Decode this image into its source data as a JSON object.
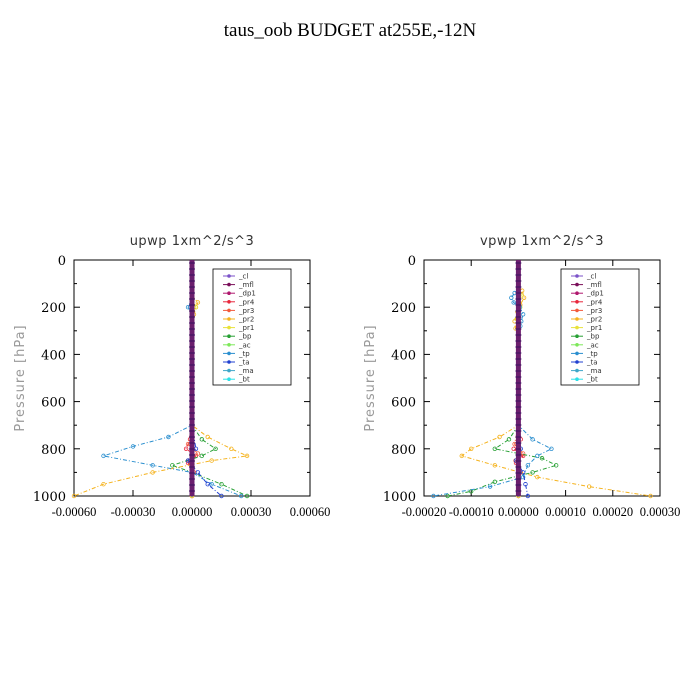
{
  "title": "taus_oob  BUDGET at255E,-12N",
  "chart_data": [
    {
      "type": "line",
      "title": "upwp   1xm^2/s^3",
      "ylabel": "Pressure [hPa]",
      "xlabel": "",
      "xlim": [
        -0.0006,
        0.0006
      ],
      "ylim": [
        1000,
        0
      ],
      "xticks": [
        "-0.00060",
        "-0.00030",
        "0.00000",
        "0.00030",
        "0.00060"
      ],
      "yticks": [
        "0",
        "200",
        "400",
        "600",
        "800",
        "1000"
      ],
      "legend_position": "top-right",
      "series": [
        {
          "name": "_cl",
          "color": "#7b52c8",
          "y": [
            0,
            1000
          ],
          "values": [
            0,
            0
          ]
        },
        {
          "name": "_mfl",
          "color": "#7a0f5a",
          "y": [
            0,
            1000
          ],
          "values": [
            0,
            0
          ]
        },
        {
          "name": "_dp1",
          "color": "#b0186e",
          "y": [
            0,
            1000
          ],
          "values": [
            0,
            0
          ]
        },
        {
          "name": "_pr4",
          "color": "#e8263c",
          "y": [
            700,
            760,
            800,
            830,
            860,
            900,
            950,
            1000
          ],
          "values": [
            0,
            -1e-05,
            -3e-05,
            2e-05,
            -2e-05,
            1e-05,
            0,
            0
          ]
        },
        {
          "name": "_pr3",
          "color": "#f25a3c",
          "y": [
            700,
            780,
            820,
            850,
            900,
            1000
          ],
          "values": [
            0,
            -2e-05,
            3e-05,
            -2e-05,
            1e-05,
            0
          ]
        },
        {
          "name": "_pr2",
          "color": "#f5b31e",
          "y": [
            150,
            180,
            200,
            230,
            700,
            750,
            800,
            830,
            850,
            900,
            950,
            1000
          ],
          "values": [
            0,
            3e-05,
            2e-05,
            1e-05,
            0,
            8e-05,
            0.0002,
            0.00028,
            0.0001,
            -0.0002,
            -0.00045,
            -0.0006
          ]
        },
        {
          "name": "_pr1",
          "color": "#e8e23a",
          "y": [
            150,
            200,
            230,
            700,
            1000
          ],
          "values": [
            0,
            2e-05,
            0,
            0,
            0
          ]
        },
        {
          "name": "_bp",
          "color": "#27a034",
          "y": [
            700,
            760,
            800,
            830,
            870,
            900,
            950,
            1000
          ],
          "values": [
            0,
            5e-05,
            0.00012,
            5e-05,
            -0.0001,
            0,
            0.00015,
            0.00028
          ]
        },
        {
          "name": "_ac",
          "color": "#7de85a",
          "y": [
            0,
            1000
          ],
          "values": [
            0,
            0
          ]
        },
        {
          "name": "_tp",
          "color": "#2b8fcf",
          "y": [
            160,
            200,
            230,
            700,
            750,
            790,
            830,
            870,
            900,
            950,
            1000
          ],
          "values": [
            0,
            -2e-05,
            0,
            0,
            -0.00012,
            -0.0003,
            -0.00045,
            -0.0002,
            0,
            0.0001,
            0.00025
          ]
        },
        {
          "name": "_ta",
          "color": "#2040d0",
          "y": [
            700,
            800,
            850,
            900,
            950,
            1000
          ],
          "values": [
            0,
            2e-05,
            -2e-05,
            3e-05,
            8e-05,
            0.00015
          ]
        },
        {
          "name": "_ma",
          "color": "#3fa6c8",
          "y": [
            0,
            1000
          ],
          "values": [
            0,
            0
          ]
        },
        {
          "name": "_bt",
          "color": "#2be0e8",
          "y": [
            0,
            1000
          ],
          "values": [
            0,
            0
          ]
        }
      ]
    },
    {
      "type": "line",
      "title": "vpwp   1xm^2/s^3",
      "ylabel": "Pressure [hPa]",
      "xlabel": "",
      "xlim": [
        -0.0002,
        0.0003
      ],
      "ylim": [
        1000,
        0
      ],
      "xticks": [
        "-0.00020",
        "-0.00010",
        "0.00000",
        "0.00010",
        "0.00020",
        "0.00030"
      ],
      "yticks": [
        "0",
        "200",
        "400",
        "600",
        "800",
        "1000"
      ],
      "legend_position": "top-right",
      "series": [
        {
          "name": "_cl",
          "color": "#7b52c8",
          "y": [
            0,
            1000
          ],
          "values": [
            0,
            0
          ]
        },
        {
          "name": "_mfl",
          "color": "#7a0f5a",
          "y": [
            0,
            1000
          ],
          "values": [
            0,
            0
          ]
        },
        {
          "name": "_dp1",
          "color": "#b0186e",
          "y": [
            0,
            1000
          ],
          "values": [
            0,
            0
          ]
        },
        {
          "name": "_pr4",
          "color": "#e8263c",
          "y": [
            700,
            760,
            800,
            830,
            860,
            900,
            950,
            1000
          ],
          "values": [
            0,
            5e-06,
            -1e-05,
            1e-05,
            -5e-06,
            5e-06,
            0,
            0
          ]
        },
        {
          "name": "_pr3",
          "color": "#f25a3c",
          "y": [
            700,
            780,
            820,
            850,
            900,
            1000
          ],
          "values": [
            0,
            -8e-06,
            1e-05,
            -6e-06,
            4e-06,
            0
          ]
        },
        {
          "name": "_pr2",
          "color": "#f5b31e",
          "y": [
            100,
            130,
            160,
            190,
            220,
            260,
            290,
            320,
            700,
            750,
            800,
            830,
            870,
            920,
            960,
            1000
          ],
          "values": [
            0,
            8e-06,
            1.2e-05,
            4e-06,
            -2e-06,
            -8e-06,
            -6e-06,
            0,
            0,
            -4e-05,
            -0.0001,
            -0.00012,
            -5e-05,
            4e-05,
            0.00015,
            0.00028
          ]
        },
        {
          "name": "_pr1",
          "color": "#e8e23a",
          "y": [
            100,
            150,
            200,
            250,
            300,
            700,
            1000
          ],
          "values": [
            0,
            6e-06,
            4e-06,
            -4e-06,
            0,
            0,
            0
          ]
        },
        {
          "name": "_bp",
          "color": "#27a034",
          "y": [
            700,
            760,
            800,
            840,
            870,
            900,
            940,
            980,
            1000
          ],
          "values": [
            0,
            -2e-05,
            -5e-05,
            5e-05,
            8e-05,
            3e-05,
            -5e-05,
            -0.0001,
            -0.00015
          ]
        },
        {
          "name": "_ac",
          "color": "#7de85a",
          "y": [
            0,
            1000
          ],
          "values": [
            0,
            0
          ]
        },
        {
          "name": "_tp",
          "color": "#2b8fcf",
          "y": [
            110,
            140,
            160,
            180,
            200,
            230,
            260,
            280,
            320,
            700,
            760,
            800,
            830,
            870,
            920,
            960,
            1000
          ],
          "values": [
            0,
            -8e-06,
            -1.5e-05,
            -1e-05,
            3e-06,
            1e-05,
            6e-06,
            4e-06,
            0,
            0,
            3e-05,
            7e-05,
            4e-05,
            2e-05,
            1e-05,
            -6e-05,
            -0.00018
          ]
        },
        {
          "name": "_ta",
          "color": "#2040d0",
          "y": [
            700,
            800,
            850,
            900,
            950,
            1000
          ],
          "values": [
            0,
            5e-06,
            -5e-06,
            1e-05,
            1.5e-05,
            2e-05
          ]
        },
        {
          "name": "_ma",
          "color": "#3fa6c8",
          "y": [
            0,
            1000
          ],
          "values": [
            0,
            0
          ]
        },
        {
          "name": "_bt",
          "color": "#2be0e8",
          "y": [
            0,
            1000
          ],
          "values": [
            0,
            0
          ]
        }
      ]
    }
  ]
}
